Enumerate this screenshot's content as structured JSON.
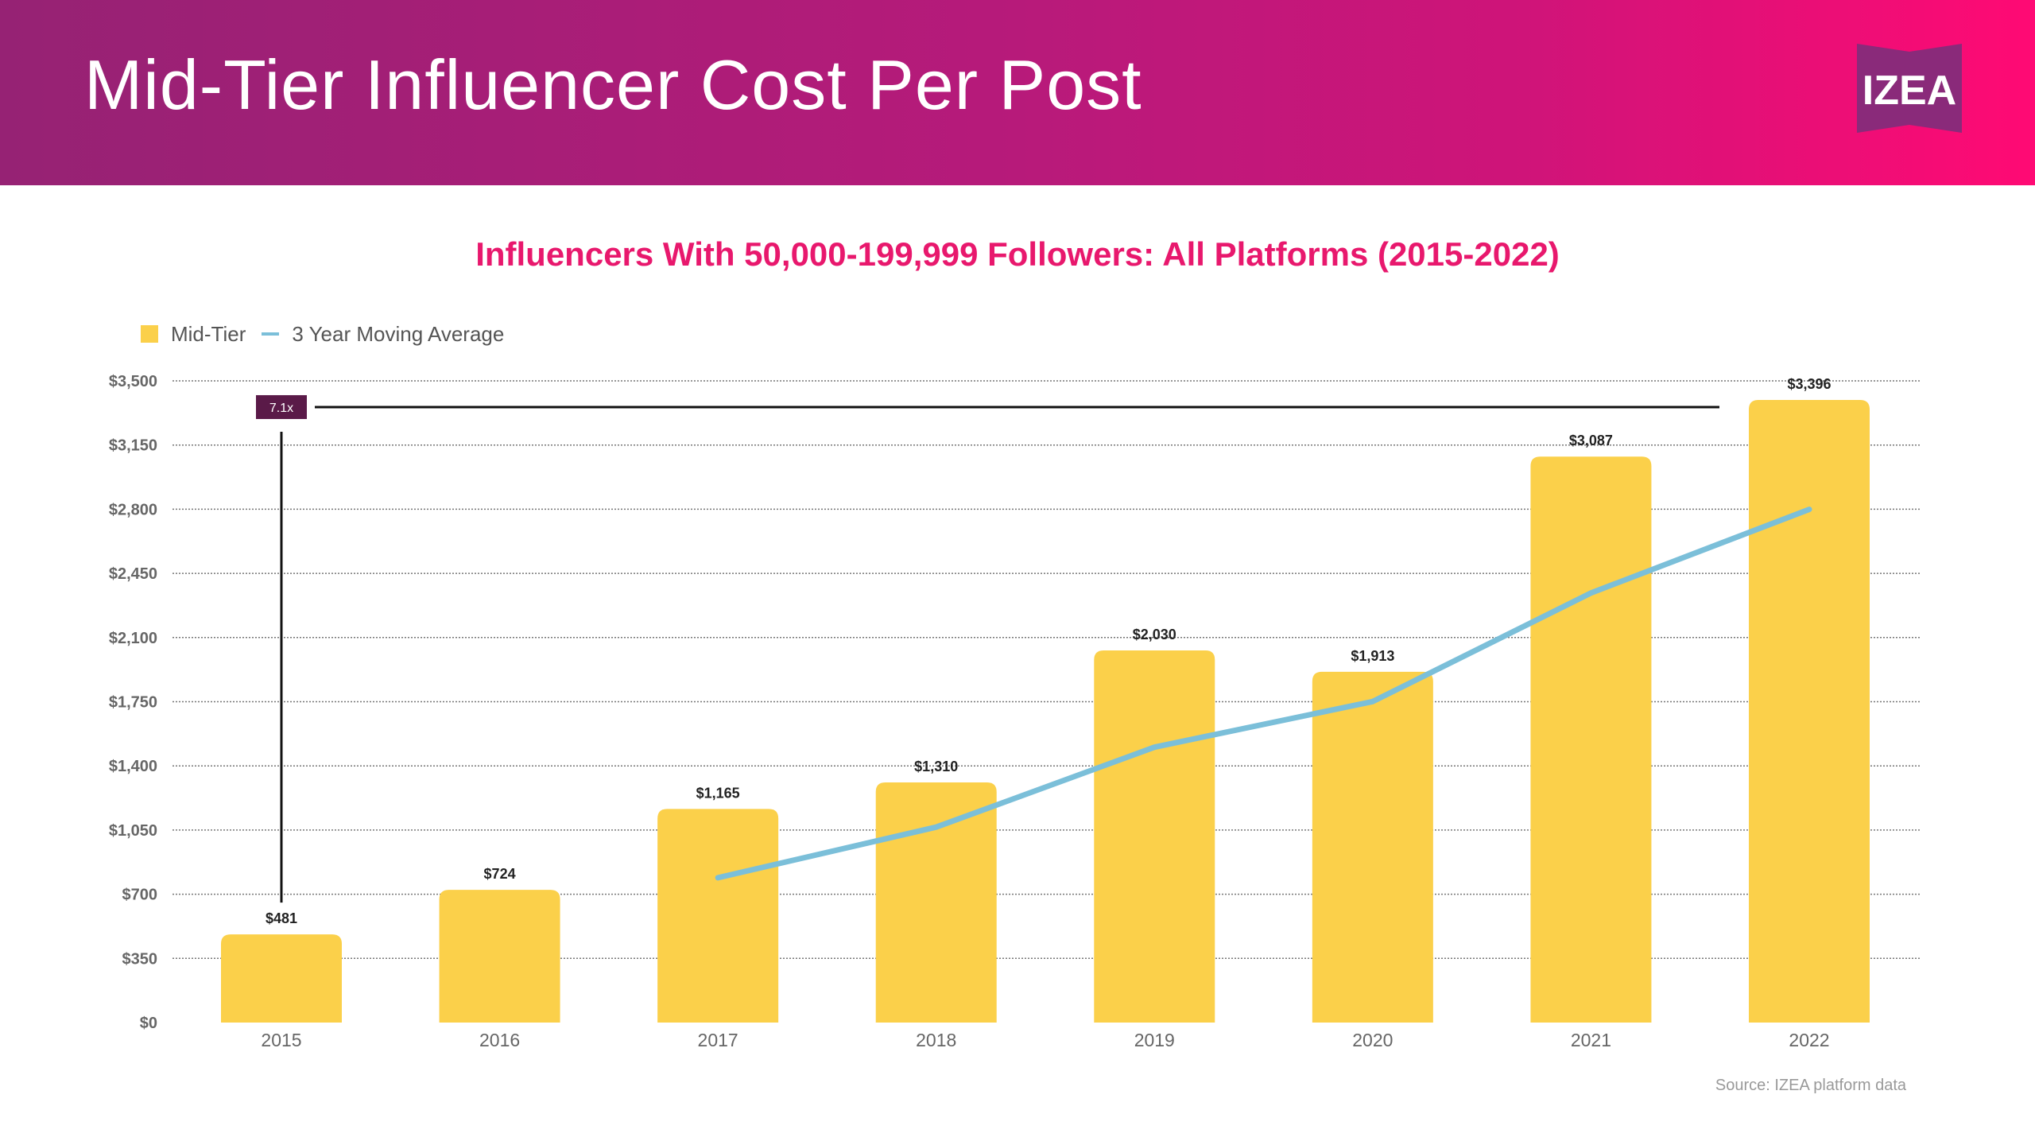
{
  "header": {
    "title": "Mid-Tier Influencer Cost Per Post",
    "logo_text": "IZEA"
  },
  "chart_data": {
    "type": "bar",
    "title": "Influencers With 50,000-199,999 Followers: All Platforms (2015-2022)",
    "categories": [
      "2015",
      "2016",
      "2017",
      "2018",
      "2019",
      "2020",
      "2021",
      "2022"
    ],
    "series": [
      {
        "name": "Mid-Tier",
        "type": "bar",
        "values": [
          481,
          724,
          1165,
          1310,
          2030,
          1913,
          3087,
          3396
        ],
        "labels": [
          "$481",
          "$724",
          "$1,165",
          "$1,310",
          "$2,030",
          "$1,913",
          "$3,087",
          "$3,396"
        ]
      },
      {
        "name": "3 Year Moving Average",
        "type": "line",
        "values": [
          null,
          null,
          790,
          1066,
          1502,
          1751,
          2343,
          2799
        ]
      }
    ],
    "ylim": [
      0,
      3500
    ],
    "yticks": [
      0,
      350,
      700,
      1050,
      1400,
      1750,
      2100,
      2450,
      2800,
      3150,
      3500
    ],
    "ytick_labels": [
      "$0",
      "$350",
      "$700",
      "$1,050",
      "$1,400",
      "$1,750",
      "$2,100",
      "$2,450",
      "$2,800",
      "$3,150",
      "$3,500"
    ],
    "xlabel": "",
    "ylabel": "",
    "grid": true,
    "legend_position": "top-left",
    "annotation": {
      "text": "7.1x",
      "from_category": "2015",
      "to_category": "2022"
    },
    "colors": {
      "bar": "#fbd04a",
      "line": "#7bbfd9",
      "annotation_box": "#5a1a48",
      "annotation_line": "#111111",
      "grid": "#777777",
      "tick_label": "#666666",
      "value_label": "#222222"
    }
  },
  "legend": {
    "bar_label": "Mid-Tier",
    "line_label": "3 Year Moving Average"
  },
  "footer": {
    "source": "Source: IZEA platform data"
  }
}
